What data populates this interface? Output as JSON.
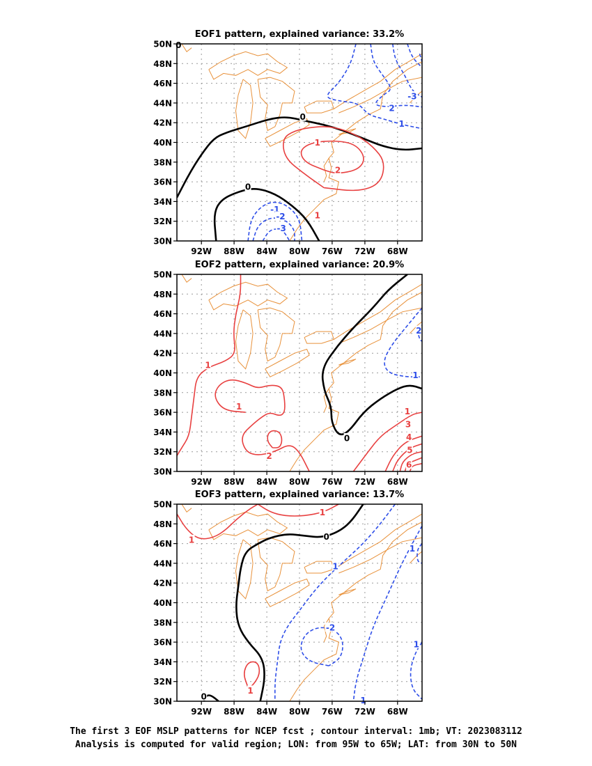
{
  "colors": {
    "coast": "#e8913a",
    "positive": "#e84040",
    "negative": "#2e4ee8",
    "zero": "#000000",
    "grid": "#999999"
  },
  "panels": [
    {
      "title": "EOF1 pattern, explained variance: 33.2%",
      "labels": [
        {
          "lon": -94.8,
          "lat": 49.9,
          "text": "0",
          "c": "zero"
        },
        {
          "lon": -79.6,
          "lat": 42.6,
          "text": "0",
          "c": "zero"
        },
        {
          "lon": -86.3,
          "lat": 35.5,
          "text": "0",
          "c": "zero"
        },
        {
          "lon": -67.5,
          "lat": 41.9,
          "text": "1",
          "c": "negative"
        },
        {
          "lon": -68.7,
          "lat": 43.5,
          "text": "2",
          "c": "negative"
        },
        {
          "lon": -66.2,
          "lat": 44.7,
          "text": "-3",
          "c": "negative"
        },
        {
          "lon": -83.0,
          "lat": 33.2,
          "text": "-1",
          "c": "negative"
        },
        {
          "lon": -82.3,
          "lat": 32.5,
          "text": "-2",
          "c": "negative"
        },
        {
          "lon": -82.2,
          "lat": 31.3,
          "text": "-3",
          "c": "negative"
        },
        {
          "lon": -77.8,
          "lat": 40.0,
          "text": "1",
          "c": "positive"
        },
        {
          "lon": -75.3,
          "lat": 37.2,
          "text": "2",
          "c": "positive"
        },
        {
          "lon": -77.8,
          "lat": 32.6,
          "text": "1",
          "c": "positive"
        }
      ]
    },
    {
      "title": "EOF2 pattern, explained variance: 20.9%",
      "labels": [
        {
          "lon": -74.2,
          "lat": 33.4,
          "text": "0",
          "c": "zero"
        },
        {
          "lon": -91.2,
          "lat": 40.8,
          "text": "1",
          "c": "positive"
        },
        {
          "lon": -87.4,
          "lat": 36.6,
          "text": "1",
          "c": "positive"
        },
        {
          "lon": -83.7,
          "lat": 31.6,
          "text": "2",
          "c": "positive"
        },
        {
          "lon": -66.8,
          "lat": 36.1,
          "text": "1",
          "c": "positive"
        },
        {
          "lon": -66.7,
          "lat": 34.8,
          "text": "3",
          "c": "positive"
        },
        {
          "lon": -66.6,
          "lat": 33.5,
          "text": "4",
          "c": "positive"
        },
        {
          "lon": -66.5,
          "lat": 32.2,
          "text": "5",
          "c": "positive"
        },
        {
          "lon": -66.6,
          "lat": 30.7,
          "text": "6",
          "c": "positive"
        },
        {
          "lon": -65.4,
          "lat": 44.3,
          "text": "2",
          "c": "negative"
        },
        {
          "lon": -65.8,
          "lat": 39.8,
          "text": "1",
          "c": "negative"
        }
      ]
    },
    {
      "title": "EOF3 pattern, explained variance: 13.7%",
      "labels": [
        {
          "lon": -91.7,
          "lat": 30.5,
          "text": "0",
          "c": "zero"
        },
        {
          "lon": -76.7,
          "lat": 46.7,
          "text": "0",
          "c": "zero"
        },
        {
          "lon": -77.2,
          "lat": 49.2,
          "text": "1",
          "c": "positive"
        },
        {
          "lon": -93.2,
          "lat": 46.4,
          "text": "1",
          "c": "positive"
        },
        {
          "lon": -86.0,
          "lat": 31.1,
          "text": "1",
          "c": "positive"
        },
        {
          "lon": -75.6,
          "lat": 43.7,
          "text": "1",
          "c": "negative"
        },
        {
          "lon": -76.2,
          "lat": 37.5,
          "text": "-2",
          "c": "negative"
        },
        {
          "lon": -66.2,
          "lat": 45.5,
          "text": "1",
          "c": "negative"
        },
        {
          "lon": -65.7,
          "lat": 35.8,
          "text": "1",
          "c": "negative"
        },
        {
          "lon": -72.2,
          "lat": 30.1,
          "text": "1",
          "c": "negative"
        }
      ]
    }
  ],
  "lon_ticks": [
    "92W",
    "88W",
    "84W",
    "80W",
    "76W",
    "72W",
    "68W"
  ],
  "lat_ticks": [
    "30N",
    "32N",
    "34N",
    "36N",
    "38N",
    "40N",
    "42N",
    "44N",
    "46N",
    "48N",
    "50N"
  ],
  "footer": {
    "line1": "The first 3 EOF MSLP patterns for NCEP fcst ; contour interval: 1mb; VT: 2023083112",
    "line2": "Analysis is computed for valid region; LON: from 95W to 65W; LAT: from 30N to 50N"
  }
}
